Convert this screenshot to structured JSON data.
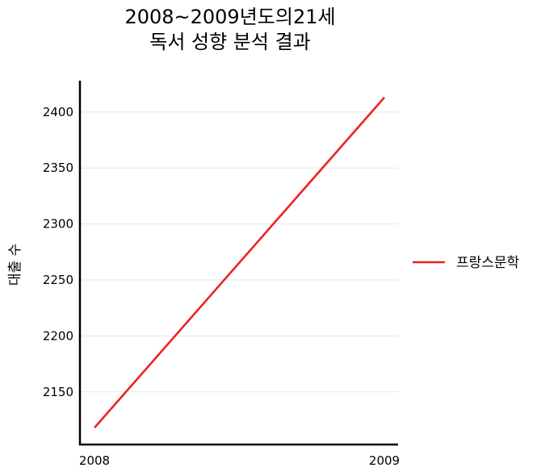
{
  "chart_data": {
    "type": "line",
    "title_lines": [
      "2008~2009년도의21세",
      "독서 성향 분석 결과"
    ],
    "xlabel": "",
    "ylabel": "대출 수",
    "x": [
      2008,
      2009
    ],
    "x_tick_labels": [
      "2008",
      "2009"
    ],
    "y_ticks": [
      2150,
      2200,
      2250,
      2300,
      2350,
      2400
    ],
    "ylim": [
      2103,
      2428
    ],
    "grid": "horizontal",
    "legend_position": "right",
    "series": [
      {
        "name": "프랑스문학",
        "color": "#ee2222",
        "values": [
          2118,
          2413
        ]
      }
    ]
  }
}
